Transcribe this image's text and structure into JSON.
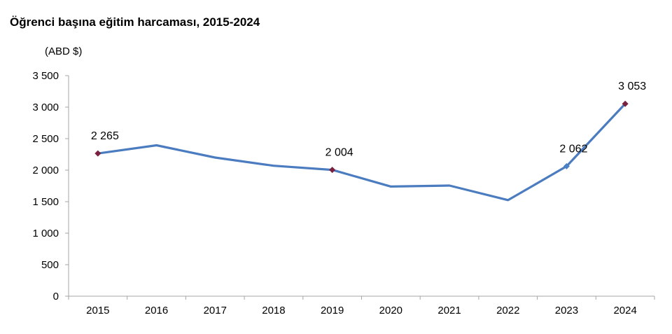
{
  "chart_data": {
    "type": "line",
    "title": "Öğrenci başına eğitim harcaması, 2015-2024",
    "unit_label": "(ABD $)",
    "xlabel": "",
    "ylabel": "",
    "categories": [
      "2015",
      "2016",
      "2017",
      "2018",
      "2019",
      "2020",
      "2021",
      "2022",
      "2023",
      "2024"
    ],
    "series": [
      {
        "values": [
          2265,
          2395,
          2200,
          2070,
          2004,
          1740,
          1755,
          1525,
          2062,
          3053
        ]
      }
    ],
    "ylim": [
      0,
      3500
    ],
    "yticks": [
      0,
      500,
      1000,
      1500,
      2000,
      2500,
      3000,
      3500
    ],
    "ytick_labels": [
      "0",
      "500",
      "1 000",
      "1 500",
      "2 000",
      "2 500",
      "3 000",
      "3 500"
    ],
    "grid": false,
    "legend": "none",
    "data_labels": [
      {
        "category": "2015",
        "text": "2 265",
        "marker_color": "#7b2140"
      },
      {
        "category": "2019",
        "text": "2 004",
        "marker_color": "#7b2140"
      },
      {
        "category": "2023",
        "text": "2 062",
        "marker_color": "#4b82c4"
      },
      {
        "category": "2024",
        "text": "3 053",
        "marker_color": "#7b2140"
      }
    ],
    "colors": {
      "line": "#4b7cc0",
      "axis": "#a6a6a6",
      "text": "#000000"
    }
  }
}
